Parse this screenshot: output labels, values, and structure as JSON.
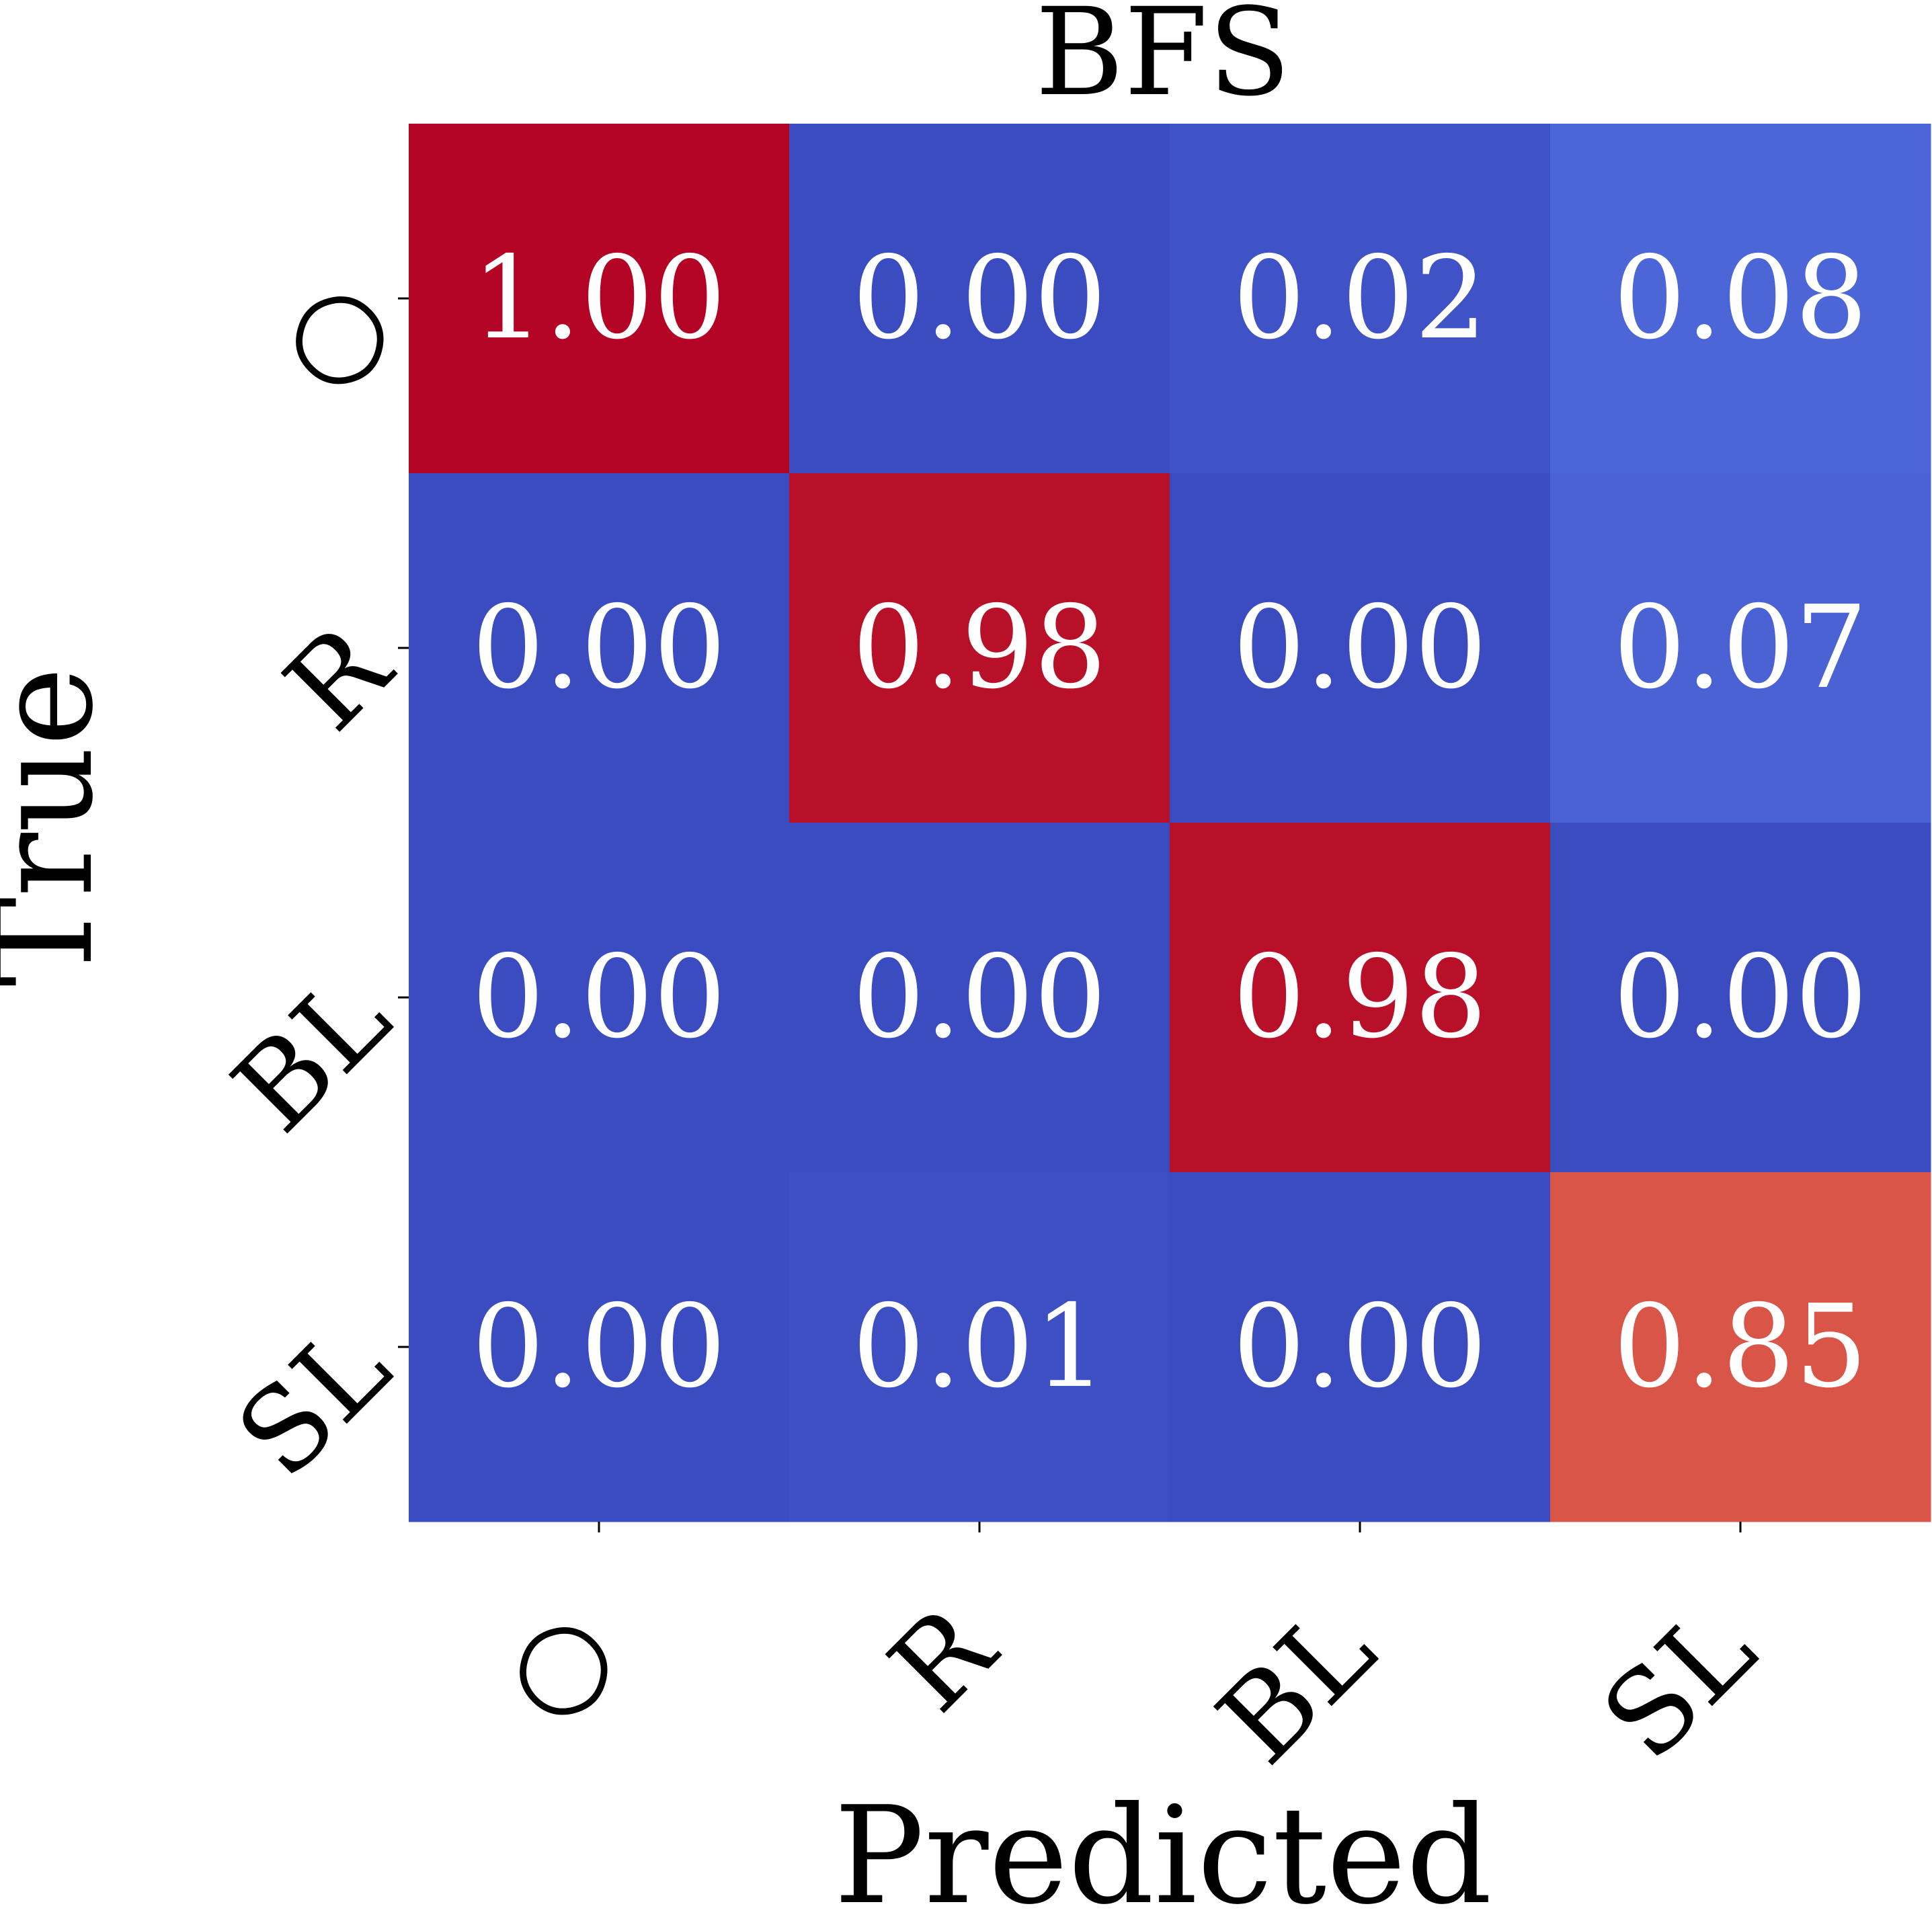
{
  "chart_data": {
    "type": "heatmap",
    "title": "BFS",
    "xlabel": "Predicted",
    "ylabel": "True",
    "x_categories": [
      "○",
      "R",
      "BL",
      "SL"
    ],
    "y_categories": [
      "○",
      "R",
      "BL",
      "SL"
    ],
    "values": [
      [
        1.0,
        0.0,
        0.02,
        0.08
      ],
      [
        0.0,
        0.98,
        0.0,
        0.07
      ],
      [
        0.0,
        0.0,
        0.98,
        0.0
      ],
      [
        0.0,
        0.01,
        0.0,
        0.85
      ]
    ],
    "value_labels": [
      [
        "1.00",
        "0.00",
        "0.02",
        "0.08"
      ],
      [
        "0.00",
        "0.98",
        "0.00",
        "0.07"
      ],
      [
        "0.00",
        "0.00",
        "0.98",
        "0.00"
      ],
      [
        "0.00",
        "0.01",
        "0.00",
        "0.85"
      ]
    ],
    "colormap": "coolwarm",
    "vmin": 0,
    "vmax": 1,
    "colorbar": false,
    "grid": false
  }
}
